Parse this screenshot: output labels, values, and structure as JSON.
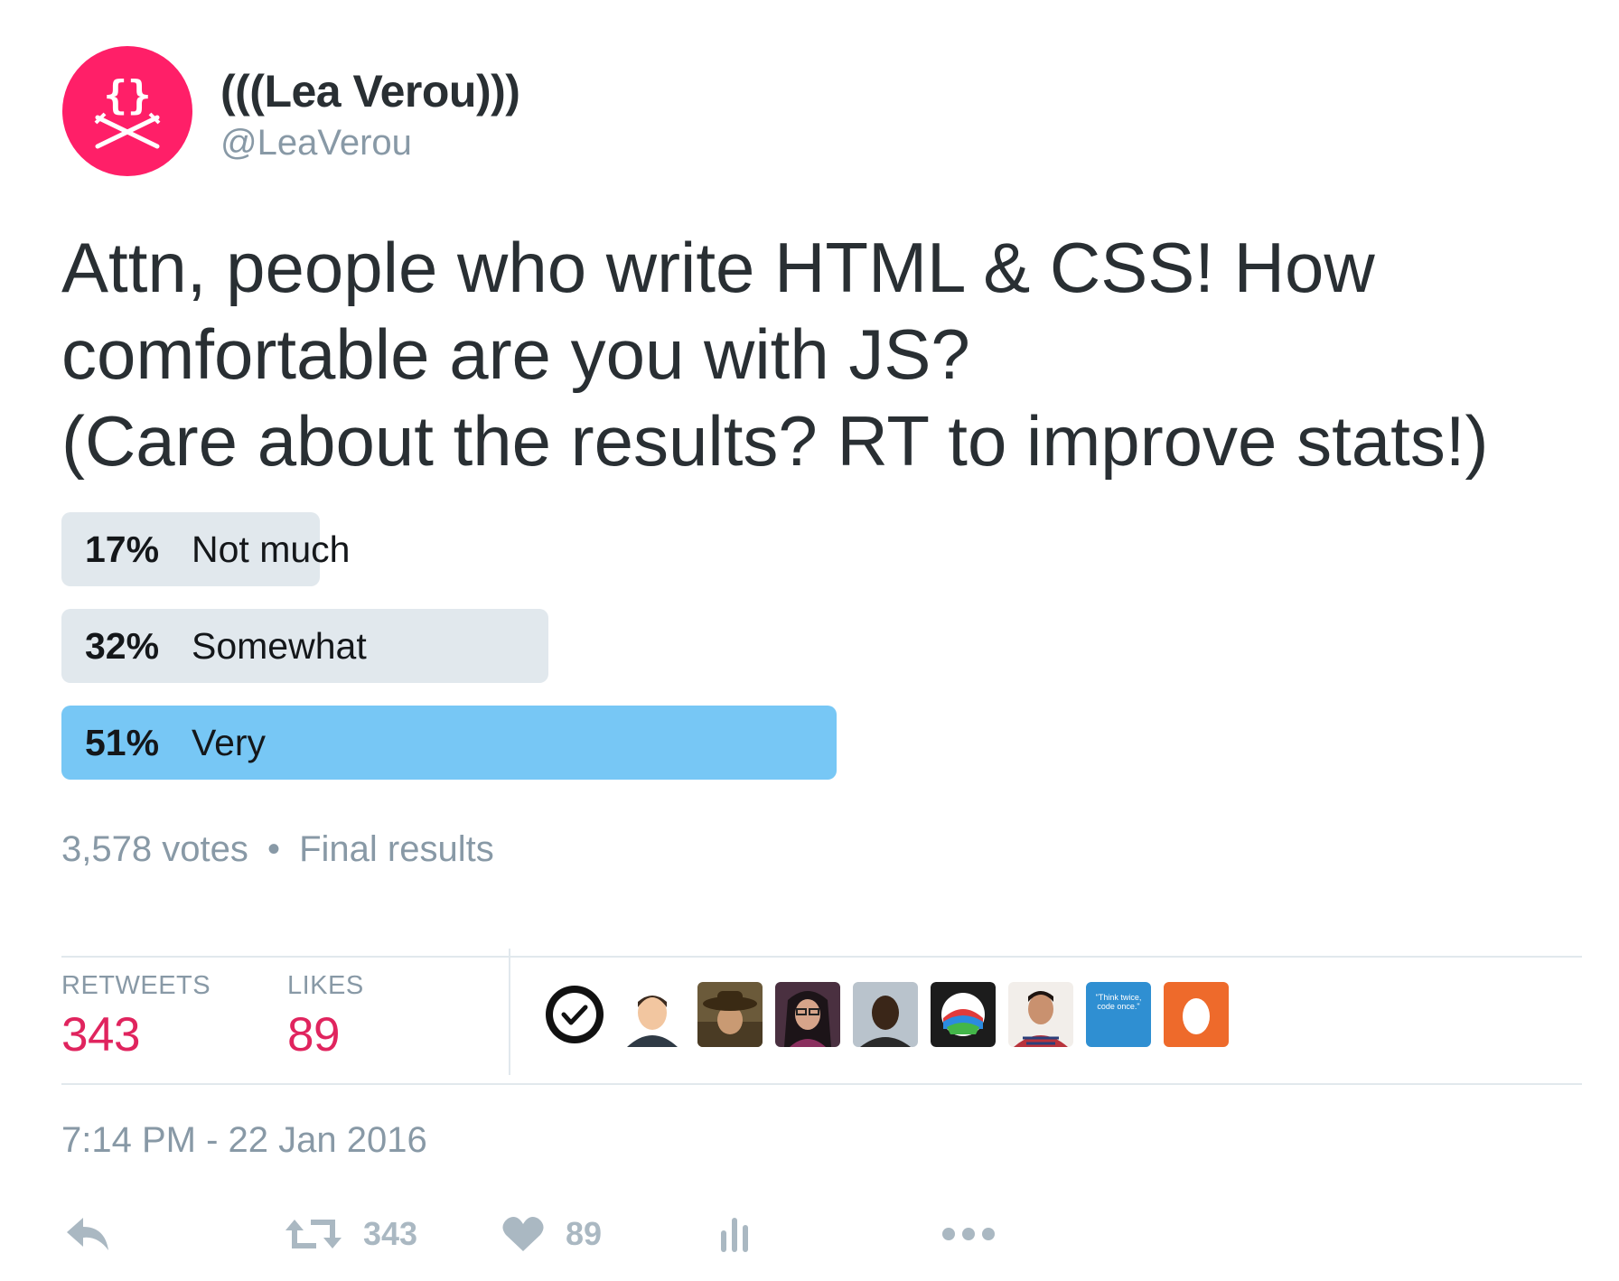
{
  "user": {
    "name": "(((Lea Verou)))",
    "handle": "@LeaVerou",
    "avatar_icon": "curly-braces-swords-icon",
    "avatar_color": "#ff1f68"
  },
  "tweet": {
    "text": "Attn, people who write HTML & CSS! How\ncomfortable are you with JS?\n(Care about the results? RT to improve stats!)"
  },
  "poll": {
    "options": [
      {
        "percent_label": "17%",
        "label": "Not much",
        "percent": 17,
        "winner": false
      },
      {
        "percent_label": "32%",
        "label": "Somewhat",
        "percent": 32,
        "winner": false
      },
      {
        "percent_label": "51%",
        "label": "Very",
        "percent": 51,
        "winner": true
      }
    ],
    "votes": "3,578 votes",
    "separator": "•",
    "status": "Final results",
    "bar_color": "#e1e8ed",
    "winner_color": "#77c7f5"
  },
  "stats": {
    "retweets_label": "RETWEETS",
    "retweets_value": "343",
    "likes_label": "LIKES",
    "likes_value": "89",
    "value_color": "#e0245e"
  },
  "likers": [
    {
      "name": "liker-checkmark-logo",
      "quote": ""
    },
    {
      "name": "liker-cartoon-man",
      "quote": ""
    },
    {
      "name": "liker-man-with-hat",
      "quote": ""
    },
    {
      "name": "liker-woman-glasses",
      "quote": ""
    },
    {
      "name": "liker-man-portrait",
      "quote": ""
    },
    {
      "name": "liker-colorful-logo",
      "quote": ""
    },
    {
      "name": "liker-man-plaid-shirt",
      "quote": ""
    },
    {
      "name": "liker-quote-card",
      "quote": "\"Think twice, code once.\""
    },
    {
      "name": "liker-default-egg",
      "quote": ""
    }
  ],
  "timestamp": "7:14 PM - 22 Jan 2016",
  "actions": {
    "reply_icon": "reply-icon",
    "retweet_icon": "retweet-icon",
    "retweet_count": "343",
    "like_icon": "heart-icon",
    "like_count": "89",
    "analytics_icon": "analytics-icon",
    "more_icon": "more-icon"
  }
}
